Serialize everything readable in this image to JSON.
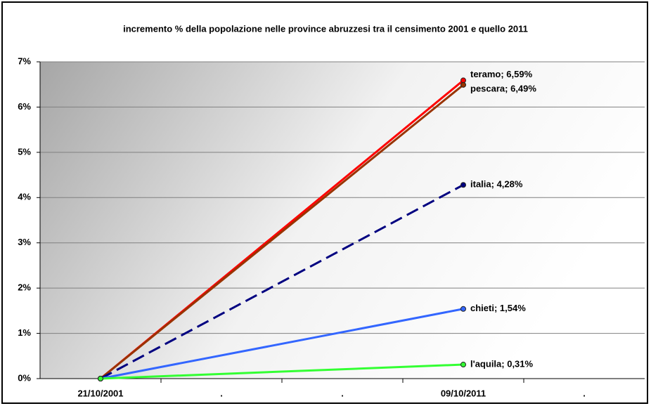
{
  "chart_data": {
    "type": "line",
    "title": "incremento % della popolazione nelle province abruzzesi tra il censimento 2001 e quello 2011",
    "xlim": [
      -0.5,
      4.5
    ],
    "xticks": [
      {
        "value": 0,
        "label": "21/10/2001"
      },
      {
        "value": 1,
        "label": "."
      },
      {
        "value": 2,
        "label": "."
      },
      {
        "value": 3,
        "label": "09/10/2011"
      },
      {
        "value": 4,
        "label": "."
      }
    ],
    "ylim": [
      0,
      7
    ],
    "yticks": [
      {
        "value": 0,
        "label": "0%"
      },
      {
        "value": 1,
        "label": "1%"
      },
      {
        "value": 2,
        "label": "2%"
      },
      {
        "value": 3,
        "label": "3%"
      },
      {
        "value": 4,
        "label": "4%"
      },
      {
        "value": 5,
        "label": "5%"
      },
      {
        "value": 6,
        "label": "6%"
      },
      {
        "value": 7,
        "label": "7%"
      }
    ],
    "grid": true,
    "series": [
      {
        "name": "teramo",
        "color": "#ff0000",
        "x": [
          0,
          3
        ],
        "values": [
          0,
          6.59
        ],
        "value_labels": [
          null,
          "teramo; 6,59%"
        ]
      },
      {
        "name": "pescara",
        "color": "#993300",
        "x": [
          0,
          3
        ],
        "values": [
          0,
          6.49
        ],
        "value_labels": [
          null,
          "pescara; 6,49%"
        ]
      },
      {
        "name": "italia",
        "color": "#000080",
        "dashed": true,
        "x": [
          0,
          3
        ],
        "values": [
          0,
          4.28
        ],
        "value_labels": [
          null,
          "italia; 4,28%"
        ]
      },
      {
        "name": "chieti",
        "color": "#3366ff",
        "x": [
          0,
          3
        ],
        "values": [
          0,
          1.54
        ],
        "value_labels": [
          null,
          "chieti; 1,54%"
        ]
      },
      {
        "name": "l'aquila",
        "color": "#33ff33",
        "x": [
          0,
          3
        ],
        "values": [
          0,
          0.31
        ],
        "value_labels": [
          null,
          "l'aquila; 0,31%"
        ]
      }
    ]
  }
}
